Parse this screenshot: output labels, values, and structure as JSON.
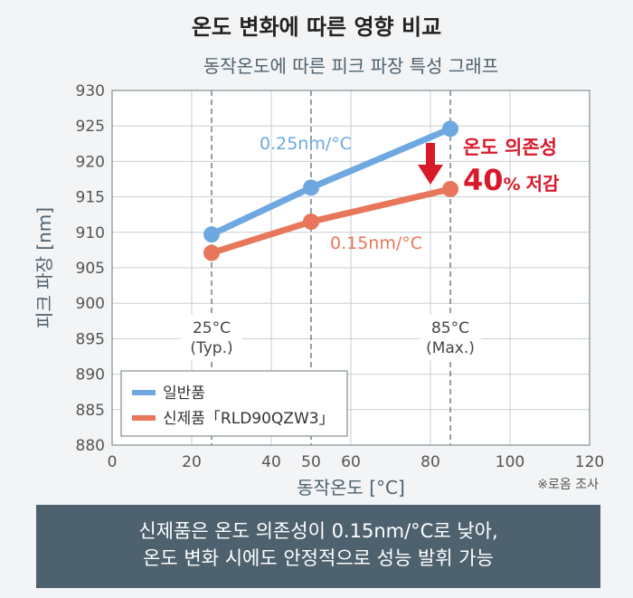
{
  "header": {
    "title": "온도 변화에 따른 영향 비교"
  },
  "chart_data": {
    "type": "line",
    "title": "동작온도에 따른 피크 파장 특성 그래프",
    "xlabel": "동작온도 [°C]",
    "ylabel": "피크 파장 [nm]",
    "xlim": [
      0,
      120
    ],
    "ylim": [
      880,
      930
    ],
    "x_ticks": [
      0,
      20,
      40,
      50,
      60,
      80,
      100,
      120
    ],
    "y_ticks": [
      880,
      885,
      890,
      895,
      900,
      905,
      910,
      915,
      920,
      925,
      930
    ],
    "grid": true,
    "series": [
      {
        "name": "일반품",
        "color": "#6ea8e0",
        "x": [
          25,
          50,
          85
        ],
        "y": [
          909.7,
          916.3,
          924.6
        ]
      },
      {
        "name": "신제품「RLD90QZW3」",
        "color": "#e8765a",
        "x": [
          25,
          50,
          85
        ],
        "y": [
          907.1,
          911.5,
          916.1
        ]
      }
    ],
    "annotations": [
      {
        "text": "0.25nm/°C",
        "color": "#6ea8e0"
      },
      {
        "text": "0.15nm/°C",
        "color": "#e8765a"
      }
    ],
    "vlines": [
      {
        "x": 25,
        "label": "25°C",
        "sublabel": "(Typ.)"
      },
      {
        "x": 50,
        "label": "",
        "sublabel": ""
      },
      {
        "x": 85,
        "label": "85°C",
        "sublabel": "(Max.)"
      }
    ],
    "callout": {
      "line1": "온도 의존성",
      "big": "40",
      "pct": "%",
      "line2": "저감",
      "color": "#d8192a"
    },
    "legend_position": "bottom-left",
    "source_note": "※로옴 조사"
  },
  "footer": {
    "line1": "신제품은 온도 의존성이 0.15nm/°C로 낮아,",
    "line2": "온도 변화 시에도 안정적으로 성능 발휘 가능"
  }
}
